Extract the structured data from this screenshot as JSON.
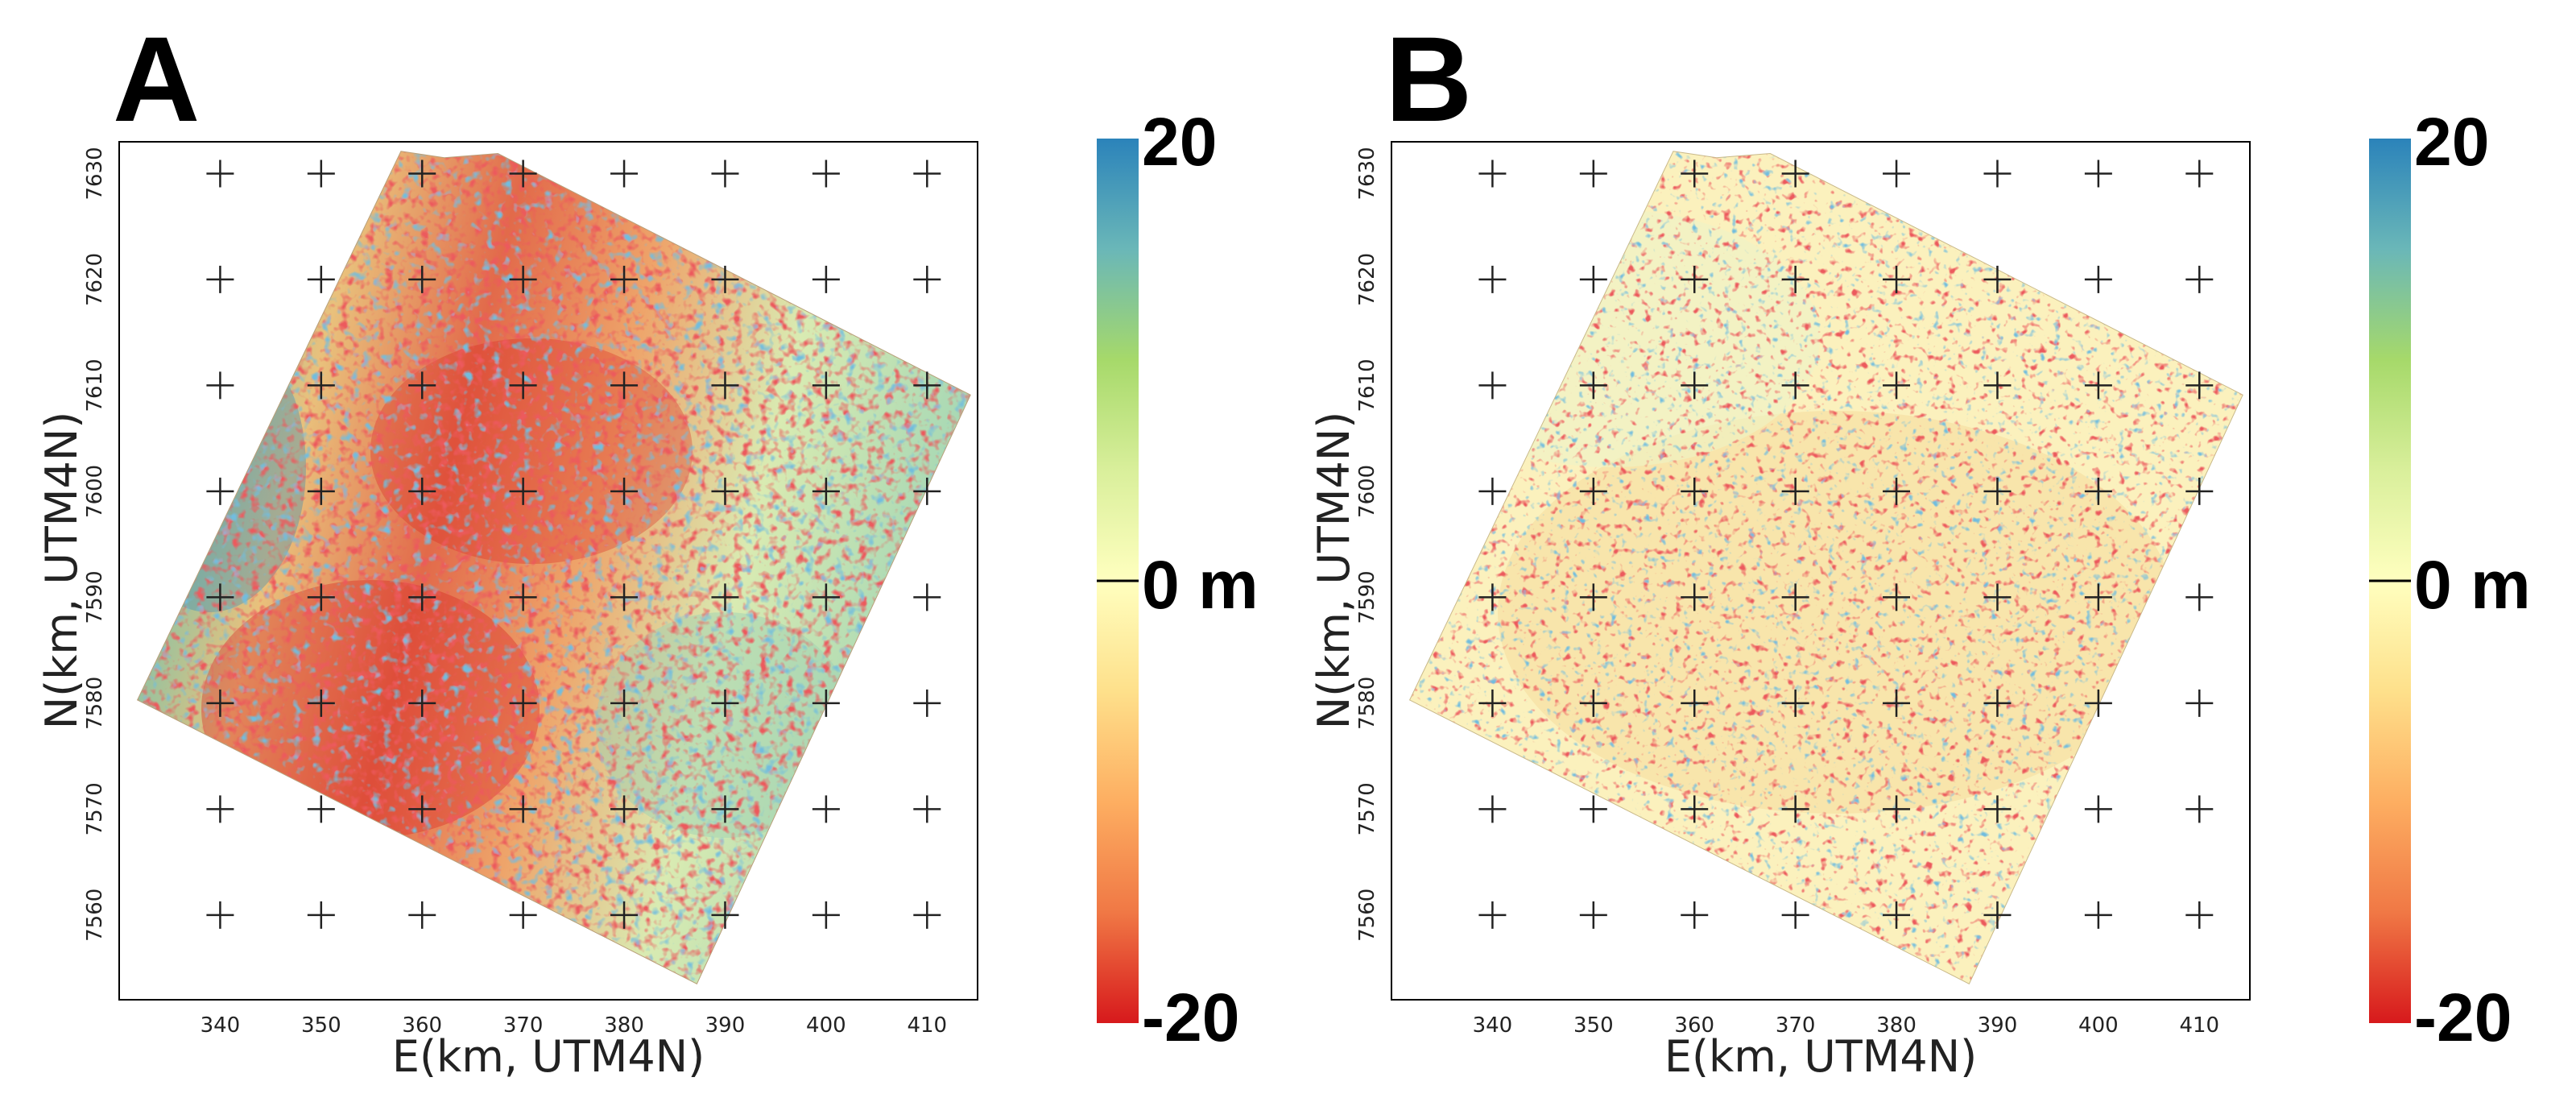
{
  "chart_data": [
    {
      "type": "heatmap",
      "panel_label": "A",
      "title": "",
      "xlabel": "E(km, UTM4N)",
      "ylabel": "N(km, UTM4N)",
      "xlim": [
        330,
        415
      ],
      "ylim": [
        7552,
        7633
      ],
      "x_ticks": [
        "340",
        "350",
        "360",
        "370",
        "380",
        "390",
        "400",
        "410"
      ],
      "y_ticks": [
        "7630",
        "7620",
        "7610",
        "7600",
        "7590",
        "7580",
        "7570",
        "7560"
      ],
      "grid": "cross markers at 10 km intervals",
      "footprint_km": [
        [
          357.9,
          7632.1
        ],
        [
          362.2,
          7631.5
        ],
        [
          367.5,
          7631.9
        ],
        [
          414.3,
          7609.1
        ],
        [
          387.2,
          7553.5
        ],
        [
          331.8,
          7580.3
        ]
      ],
      "colorbar": {
        "max_label": "20",
        "mid_label": "0 m",
        "min_label": "-20",
        "range": [
          -20,
          20
        ],
        "unit": "m",
        "colormap": "RdYlBu (red negative, blue positive)"
      },
      "pattern": "strong red (negative) in centre and southwest, blue (positive) along western edge, mixed elsewhere"
    },
    {
      "type": "heatmap",
      "panel_label": "B",
      "title": "",
      "xlabel": "E(km, UTM4N)",
      "ylabel": "N(km, UTM4N)",
      "xlim": [
        330,
        415
      ],
      "ylim": [
        7552,
        7633
      ],
      "x_ticks": [
        "340",
        "350",
        "360",
        "370",
        "380",
        "390",
        "400",
        "410"
      ],
      "y_ticks": [
        "7630",
        "7620",
        "7610",
        "7600",
        "7590",
        "7580",
        "7570",
        "7560"
      ],
      "grid": "cross markers at 10 km intervals",
      "footprint_km": [
        [
          357.9,
          7632.1
        ],
        [
          362.2,
          7631.5
        ],
        [
          367.5,
          7631.9
        ],
        [
          414.3,
          7609.1
        ],
        [
          387.2,
          7553.5
        ],
        [
          331.8,
          7580.3
        ]
      ],
      "colorbar": {
        "max_label": "20",
        "mid_label": "0 m",
        "min_label": "-20",
        "range": [
          -20,
          20
        ],
        "unit": "m",
        "colormap": "RdYlBu (red negative, blue positive)"
      },
      "pattern": "mostly near zero (pale yellow) with red/blue speckle on mountain slopes"
    }
  ],
  "colors": {
    "cmap": [
      "#d7191c",
      "#f07845",
      "#fdae61",
      "#fee08b",
      "#ffffbf",
      "#d9ef9b",
      "#a6d96a",
      "#6ab7b8",
      "#2b83ba"
    ],
    "grid_cross": "#222222",
    "frame": "#000000"
  }
}
